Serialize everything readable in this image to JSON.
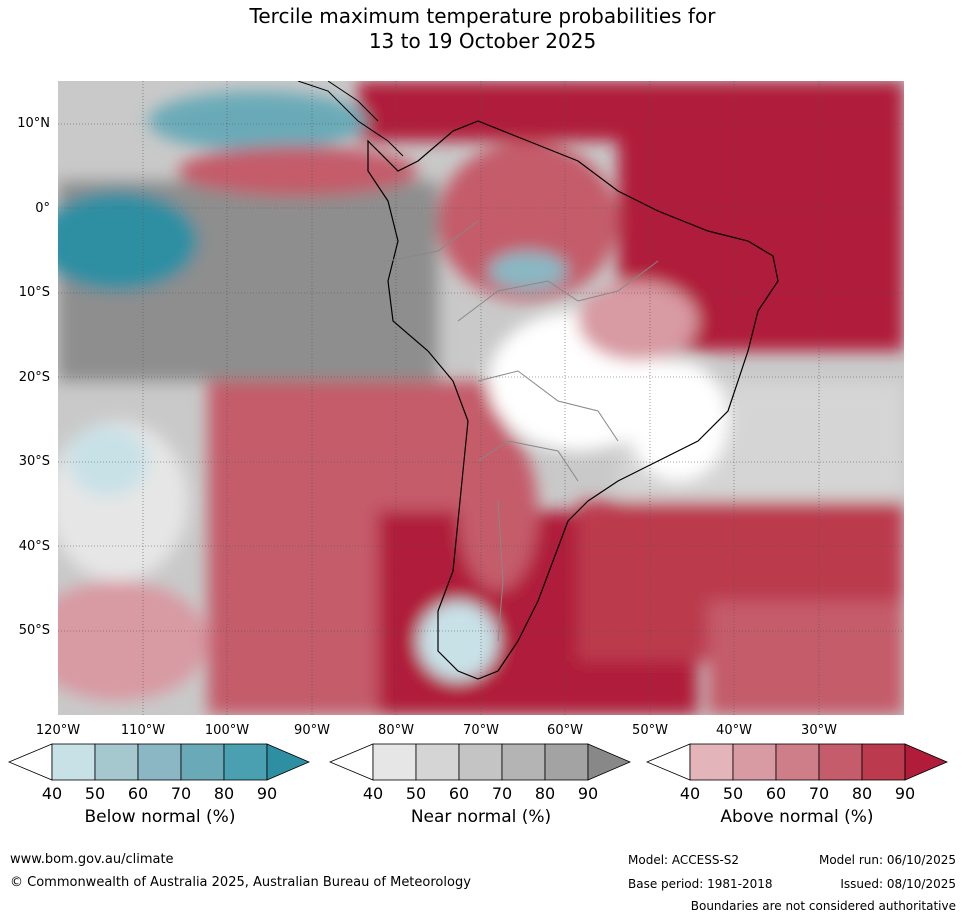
{
  "title_line1": "Tercile maximum temperature probabilities for",
  "title_line2": "13 to 19 October 2025",
  "lat_labels": [
    "10°N",
    "0°",
    "10°S",
    "20°S",
    "30°S",
    "40°S",
    "50°S"
  ],
  "lon_labels": [
    "120°W",
    "110°W",
    "100°W",
    "90°W",
    "80°W",
    "70°W",
    "60°W",
    "50°W",
    "40°W",
    "30°W"
  ],
  "colorbars": [
    {
      "name": "below",
      "title": "Below normal (%)",
      "ticks": [
        "40",
        "50",
        "60",
        "70",
        "80",
        "90"
      ],
      "colors": [
        "#ffffff",
        "#c8e1e7",
        "#a5c7ce",
        "#8ab7c3",
        "#6aaab8",
        "#4a9fb0",
        "#2e8fa3"
      ]
    },
    {
      "name": "near",
      "title": "Near normal (%)",
      "ticks": [
        "40",
        "50",
        "60",
        "70",
        "80",
        "90"
      ],
      "colors": [
        "#ffffff",
        "#e6e6e6",
        "#d5d5d5",
        "#c4c4c4",
        "#b4b4b4",
        "#a3a3a3",
        "#888888"
      ]
    },
    {
      "name": "above",
      "title": "Above normal (%)",
      "ticks": [
        "40",
        "50",
        "60",
        "70",
        "80",
        "90"
      ],
      "colors": [
        "#ffffff",
        "#e3b4ba",
        "#d89aa3",
        "#cd7e88",
        "#c45c6b",
        "#bb3a4d",
        "#b01c3a"
      ]
    }
  ],
  "footer": {
    "website": "www.bom.gov.au/climate",
    "copyright": "© Commonwealth of Australia 2025, Australian Bureau of Meteorology",
    "model": "Model: ACCESS-S2",
    "base_period": "Base period: 1981-2018",
    "model_run": "Model run: 06/10/2025",
    "issued": "Issued: 08/10/2025",
    "disclaimer": "Boundaries are not considered authoritative"
  }
}
